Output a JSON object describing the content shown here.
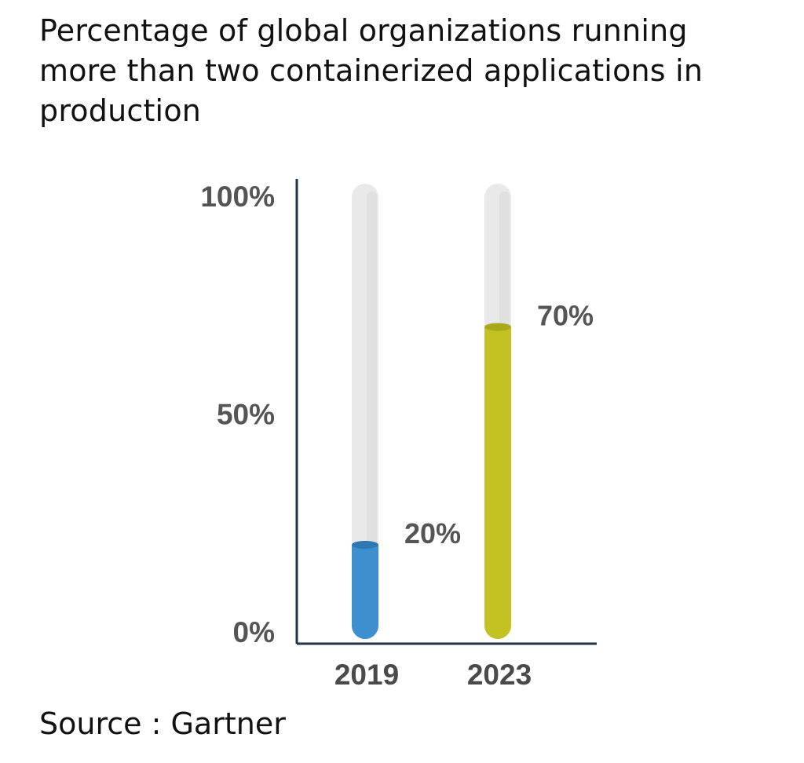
{
  "header": {
    "title_lines": [
      "Percentage of  global organizations running",
      "more than two containerized applications in",
      "production"
    ]
  },
  "footer": {
    "source": "Source : Gartner"
  },
  "colors": {
    "axis": "#1f3545",
    "tube": "#e9e9e9",
    "tube_shadow": "#dadada",
    "bar_2019": "#3d8fcf",
    "bar_2019_top": "#2e78b3",
    "bar_2023": "#c3c222",
    "bar_2023_top": "#a9a81b"
  },
  "chart_data": {
    "type": "bar",
    "title": "Percentage of  global organizations running more than two containerized applications in production",
    "categories": [
      "2019",
      "2023"
    ],
    "values": [
      20,
      70
    ],
    "value_labels": [
      "20%",
      "70%"
    ],
    "ylim": [
      0,
      100
    ],
    "yticks": [
      0,
      50,
      100
    ],
    "ytick_labels": [
      "0%",
      "50%",
      "100%"
    ],
    "xlabel": "",
    "ylabel": "",
    "grid": false,
    "legend": "none"
  }
}
